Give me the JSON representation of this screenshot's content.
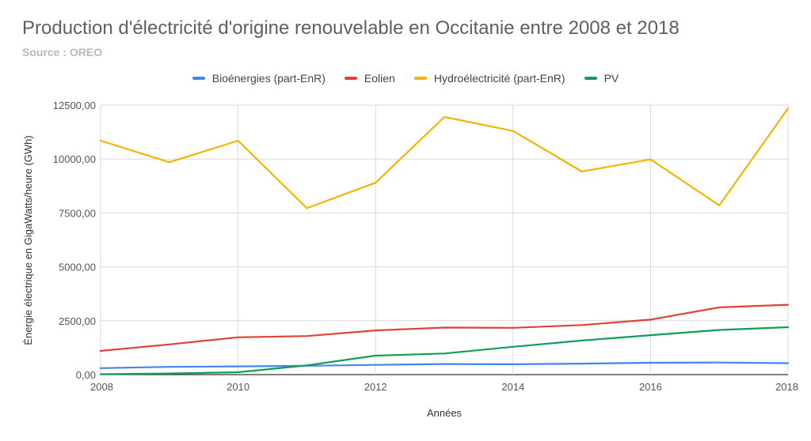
{
  "chart_data": {
    "type": "line",
    "title": "Production d'électricité d'origine renouvelable en Occitanie entre 2008 et 2018",
    "subtitle": "Source : OREO",
    "xlabel": "Années",
    "ylabel": "Énergie électrique en GigaWatts/heure (GWh)",
    "xlim": [
      2008,
      2018
    ],
    "ylim": [
      0,
      12500
    ],
    "xticks": [
      "2008",
      "2010",
      "2012",
      "2014",
      "2016",
      "2018"
    ],
    "xtick_values": [
      2008,
      2010,
      2012,
      2014,
      2016,
      2018
    ],
    "yticks": [
      "0,00",
      "2500,00",
      "5000,00",
      "7500,00",
      "10000,00",
      "12500,00"
    ],
    "ytick_values": [
      0,
      2500,
      5000,
      7500,
      10000,
      12500
    ],
    "grid": true,
    "legend_position": "top",
    "x": [
      2008,
      2009,
      2010,
      2011,
      2012,
      2013,
      2014,
      2015,
      2016,
      2017,
      2018
    ],
    "series": [
      {
        "name": "Bioénergies (part-EnR)",
        "color": "#4285f4",
        "values": [
          300,
          360,
          380,
          410,
          450,
          490,
          480,
          510,
          550,
          560,
          530
        ]
      },
      {
        "name": "Eolien",
        "color": "#db4437",
        "values": [
          1100,
          1400,
          1730,
          1790,
          2050,
          2180,
          2170,
          2300,
          2550,
          3120,
          3240
        ]
      },
      {
        "name": "Hydroélectricité (part-EnR)",
        "color": "#f4b400",
        "values": [
          10850,
          9850,
          10850,
          7720,
          8900,
          11950,
          11300,
          9420,
          9980,
          7850,
          12350
        ]
      },
      {
        "name": "PV",
        "color": "#0f9d58",
        "values": [
          20,
          50,
          110,
          430,
          880,
          980,
          1290,
          1580,
          1830,
          2070,
          2200
        ]
      }
    ]
  }
}
